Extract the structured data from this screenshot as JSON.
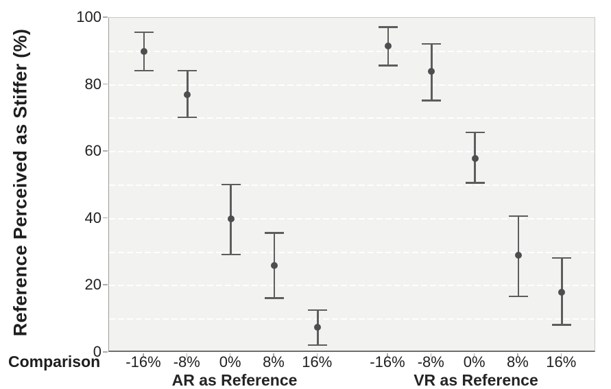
{
  "chart_data": {
    "type": "scatter",
    "subtype": "point-estimates-with-error-bars",
    "title": "",
    "ylabel": "Reference Perceived as Stiffer (%)",
    "xlabel": "Comparison",
    "ylim": [
      0,
      100
    ],
    "yticks": [
      0,
      20,
      40,
      60,
      80,
      100
    ],
    "gridline_values": [
      10,
      20,
      30,
      40,
      50,
      60,
      70,
      80,
      90
    ],
    "grid": "horizontal dashed white lines on light gray panel",
    "legend_position": "none",
    "categories": [
      "-16%",
      "-8%",
      "0%",
      "8%",
      "16%"
    ],
    "series": [
      {
        "name": "AR as Reference",
        "values": [
          90,
          77,
          40,
          26,
          7.5
        ],
        "ci_low": [
          84,
          70,
          29,
          16,
          2
        ],
        "ci_high": [
          96,
          84.5,
          50.5,
          36,
          13
        ]
      },
      {
        "name": "VR as Reference",
        "values": [
          91.5,
          84,
          58,
          29,
          18
        ],
        "ci_low": [
          85.5,
          75,
          50.5,
          16.5,
          8
        ],
        "ci_high": [
          97.5,
          92.5,
          66,
          41,
          28.5
        ]
      }
    ],
    "colors": {
      "marker": "#4e4e50",
      "error_bar": "#5d5d5d",
      "plot_background": "#f2f2f0",
      "gridline": "#ffffff",
      "axis_bottom": "#6e6e6e",
      "axis_left": "#9a9a9a",
      "border_top_right": "#c9c9c7",
      "tick_mark": "#ababab",
      "text": "#1e1e1e"
    }
  }
}
